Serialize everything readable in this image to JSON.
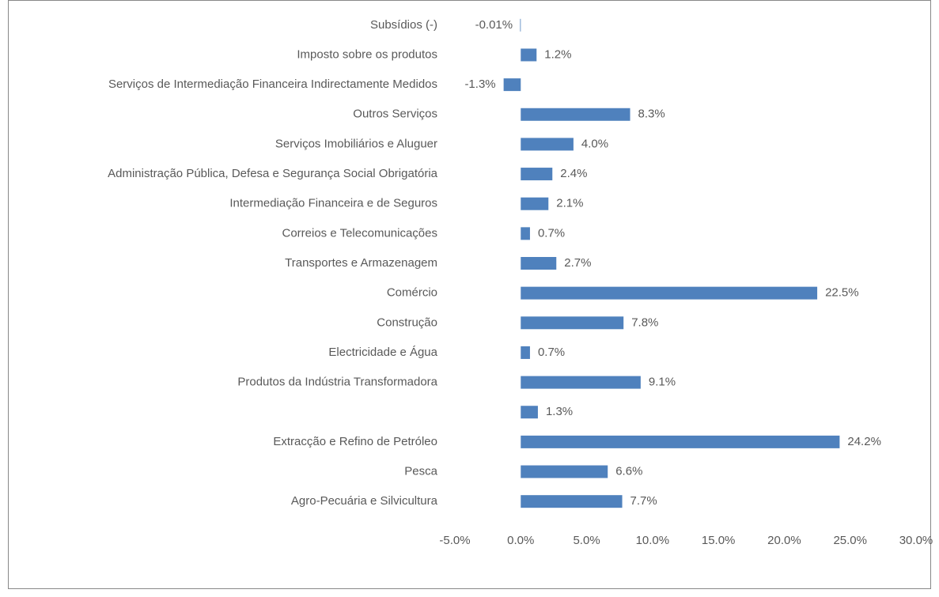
{
  "chart_data": {
    "type": "bar",
    "orientation": "horizontal",
    "categories": [
      "Subsídios (-)",
      "Imposto sobre os produtos",
      "Serviços de Intermediação Financeira Indirectamente Medidos",
      "Outros Serviços",
      "Serviços Imobiliários e Aluguer",
      "Administração Pública, Defesa e Segurança Social Obrigatória",
      "Intermediação Financeira e de Seguros",
      "Correios e Telecomunicações",
      "Transportes e Armazenagem",
      "Comércio",
      "Construção",
      "Electricidade e Água",
      "Produtos da Indústria Transformadora",
      null,
      "Extracção e Refino de Petróleo",
      "Pesca",
      "Agro-Pecuária e Silvicultura"
    ],
    "values": [
      -0.01,
      1.2,
      -1.3,
      8.3,
      4.0,
      2.4,
      2.1,
      0.7,
      2.7,
      22.5,
      7.8,
      0.7,
      9.1,
      1.3,
      24.2,
      6.6,
      7.7
    ],
    "value_labels": [
      "-0.01%",
      "1.2%",
      "-1.3%",
      "8.3%",
      "4.0%",
      "2.4%",
      "2.1%",
      "0.7%",
      "2.7%",
      "22.5%",
      "7.8%",
      "0.7%",
      "9.1%",
      "1.3%",
      "24.2%",
      "6.6%",
      "7.7%"
    ],
    "color": "#4f81bd",
    "xlim": [
      -5,
      30
    ],
    "xticks": [
      {
        "value": -5,
        "label": "-5.0%"
      },
      {
        "value": 0,
        "label": "0.0%"
      },
      {
        "value": 5,
        "label": "5.0%"
      },
      {
        "value": 10,
        "label": "10.0%"
      },
      {
        "value": 15,
        "label": "15.0%"
      },
      {
        "value": 20,
        "label": "20.0%"
      },
      {
        "value": 25,
        "label": "25.0%"
      },
      {
        "value": 30,
        "label": "30.0%"
      }
    ],
    "grid": false
  }
}
